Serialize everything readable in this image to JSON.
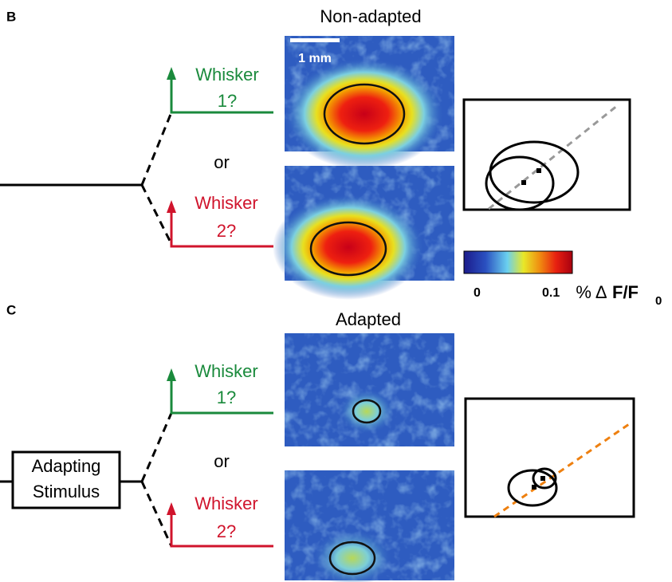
{
  "panels": [
    {
      "label": "B",
      "title": "Non-adapted",
      "scale_bar": "1 mm",
      "branches": [
        {
          "name": "Whisker",
          "number": "1?"
        },
        {
          "name": "Whisker",
          "number": "2?"
        }
      ],
      "connector": "or",
      "colorbar": {
        "min": 0,
        "max": 0.1,
        "unit": "% Δ",
        "quantity": "F/F",
        "subscript": "0"
      }
    },
    {
      "label": "C",
      "title": "Adapted",
      "stimulus": [
        "Adapting",
        "Stimulus"
      ],
      "branches": [
        {
          "name": "Whisker",
          "number": "1?"
        },
        {
          "name": "Whisker",
          "number": "2?"
        }
      ],
      "connector": "or"
    }
  ]
}
